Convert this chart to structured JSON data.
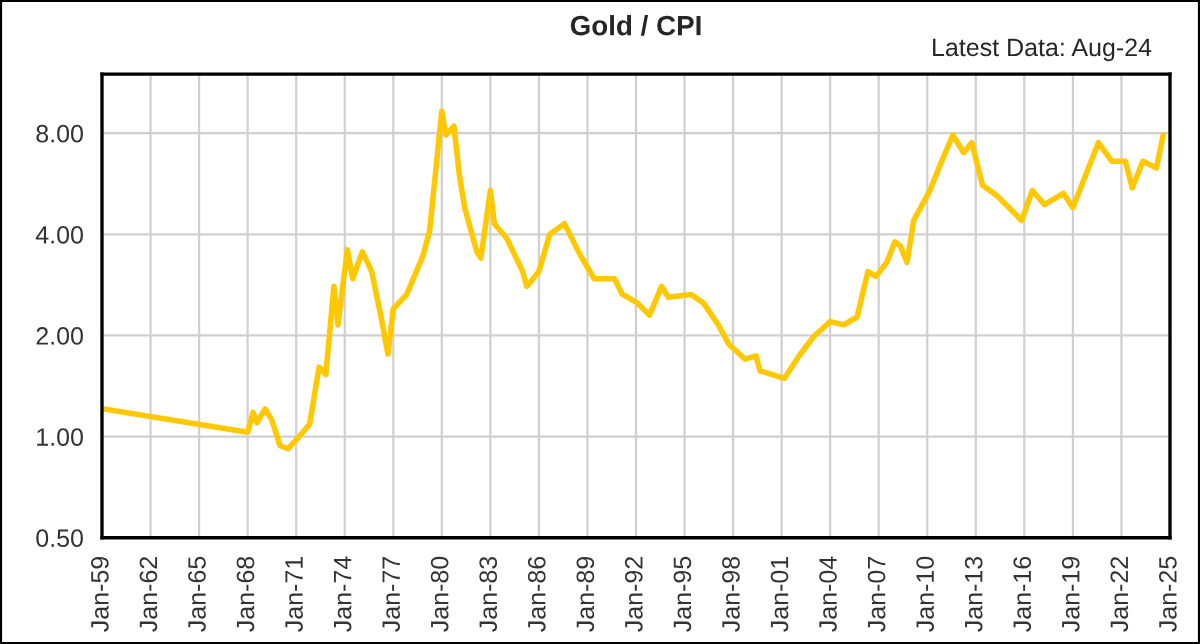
{
  "chart_data": {
    "type": "line",
    "title": "Gold / CPI",
    "annotations": [
      "Latest Data: Aug-24"
    ],
    "log": "y",
    "grid": true,
    "marker": "none",
    "line_style": "solid",
    "ylim": [
      0.5,
      12
    ],
    "yticks": [
      {
        "value": 0.5,
        "label": "0.50"
      },
      {
        "value": 1,
        "label": "1.00"
      },
      {
        "value": 2,
        "label": "2.00"
      },
      {
        "value": 4,
        "label": "4.00"
      },
      {
        "value": 8,
        "label": "8.00"
      }
    ],
    "xlim": [
      "1959-01",
      "2025-01"
    ],
    "xticks": [
      {
        "value": "1959-01",
        "label": "Jan-59"
      },
      {
        "value": "1962-01",
        "label": "Jan-62"
      },
      {
        "value": "1965-01",
        "label": "Jan-65"
      },
      {
        "value": "1968-01",
        "label": "Jan-68"
      },
      {
        "value": "1971-01",
        "label": "Jan-71"
      },
      {
        "value": "1974-01",
        "label": "Jan-74"
      },
      {
        "value": "1977-01",
        "label": "Jan-77"
      },
      {
        "value": "1980-01",
        "label": "Jan-80"
      },
      {
        "value": "1983-01",
        "label": "Jan-83"
      },
      {
        "value": "1986-01",
        "label": "Jan-86"
      },
      {
        "value": "1989-01",
        "label": "Jan-89"
      },
      {
        "value": "1992-01",
        "label": "Jan-92"
      },
      {
        "value": "1995-01",
        "label": "Jan-95"
      },
      {
        "value": "1998-01",
        "label": "Jan-98"
      },
      {
        "value": "2001-01",
        "label": "Jan-01"
      },
      {
        "value": "2004-01",
        "label": "Jan-04"
      },
      {
        "value": "2007-01",
        "label": "Jan-07"
      },
      {
        "value": "2010-01",
        "label": "Jan-10"
      },
      {
        "value": "2013-01",
        "label": "Jan-13"
      },
      {
        "value": "2016-01",
        "label": "Jan-16"
      },
      {
        "value": "2019-01",
        "label": "Jan-19"
      },
      {
        "value": "2022-01",
        "label": "Jan-22"
      },
      {
        "value": "2025-01",
        "label": "Jan-25"
      }
    ],
    "x": [
      "1959-01",
      "1968-01",
      "1968-05",
      "1968-08",
      "1969-02",
      "1969-07",
      "1970-01",
      "1970-07",
      "1971-06",
      "1971-11",
      "1972-06",
      "1972-11",
      "1973-05",
      "1973-08",
      "1974-03",
      "1974-07",
      "1975-02",
      "1975-09",
      "1976-04",
      "1976-09",
      "1977-01",
      "1977-11",
      "1978-11",
      "1979-04",
      "1980-01",
      "1980-04",
      "1980-10",
      "1981-02",
      "1981-06",
      "1982-03",
      "1982-06",
      "1983-01",
      "1983-04",
      "1984-01",
      "1985-01",
      "1985-04",
      "1986-01",
      "1986-09",
      "1987-08",
      "1988-08",
      "1989-06",
      "1990-09",
      "1991-03",
      "1992-02",
      "1992-11",
      "1993-08",
      "1994-01",
      "1995-06",
      "1996-03",
      "1997-02",
      "1997-10",
      "1998-10",
      "1999-06",
      "1999-09",
      "2001-03",
      "2002-02",
      "2003-01",
      "2004-01",
      "2004-11",
      "2005-09",
      "2006-05",
      "2006-11",
      "2007-07",
      "2008-01",
      "2008-05",
      "2008-10",
      "2009-03",
      "2010-03",
      "2010-11",
      "2011-08",
      "2012-04",
      "2012-10",
      "2013-06",
      "2014-05",
      "2015-11",
      "2016-07",
      "2017-04",
      "2018-06",
      "2019-01",
      "2019-09",
      "2020-08",
      "2021-06",
      "2022-04",
      "2022-09",
      "2023-05",
      "2024-03",
      "2024-08"
    ],
    "series": [
      {
        "color": "#ffc800",
        "values": [
          1.21,
          1.03,
          1.18,
          1.1,
          1.21,
          1.12,
          0.94,
          0.92,
          1.03,
          1.09,
          1.61,
          1.53,
          2.8,
          2.15,
          3.6,
          2.95,
          3.55,
          3.1,
          2.27,
          1.76,
          2.4,
          2.65,
          3.45,
          4.1,
          9.3,
          7.9,
          8.4,
          6.0,
          4.8,
          3.55,
          3.4,
          5.4,
          4.3,
          3.9,
          3.1,
          2.8,
          3.1,
          4.0,
          4.3,
          3.45,
          2.95,
          2.95,
          2.65,
          2.5,
          2.3,
          2.8,
          2.6,
          2.65,
          2.5,
          2.15,
          1.88,
          1.7,
          1.74,
          1.57,
          1.49,
          1.74,
          1.99,
          2.2,
          2.15,
          2.27,
          3.1,
          3.0,
          3.3,
          3.8,
          3.7,
          3.3,
          4.4,
          5.4,
          6.5,
          7.9,
          7.0,
          7.5,
          5.6,
          5.2,
          4.4,
          5.4,
          4.9,
          5.3,
          4.8,
          5.8,
          7.5,
          6.6,
          6.6,
          5.5,
          6.6,
          6.3,
          7.9
        ]
      }
    ]
  }
}
